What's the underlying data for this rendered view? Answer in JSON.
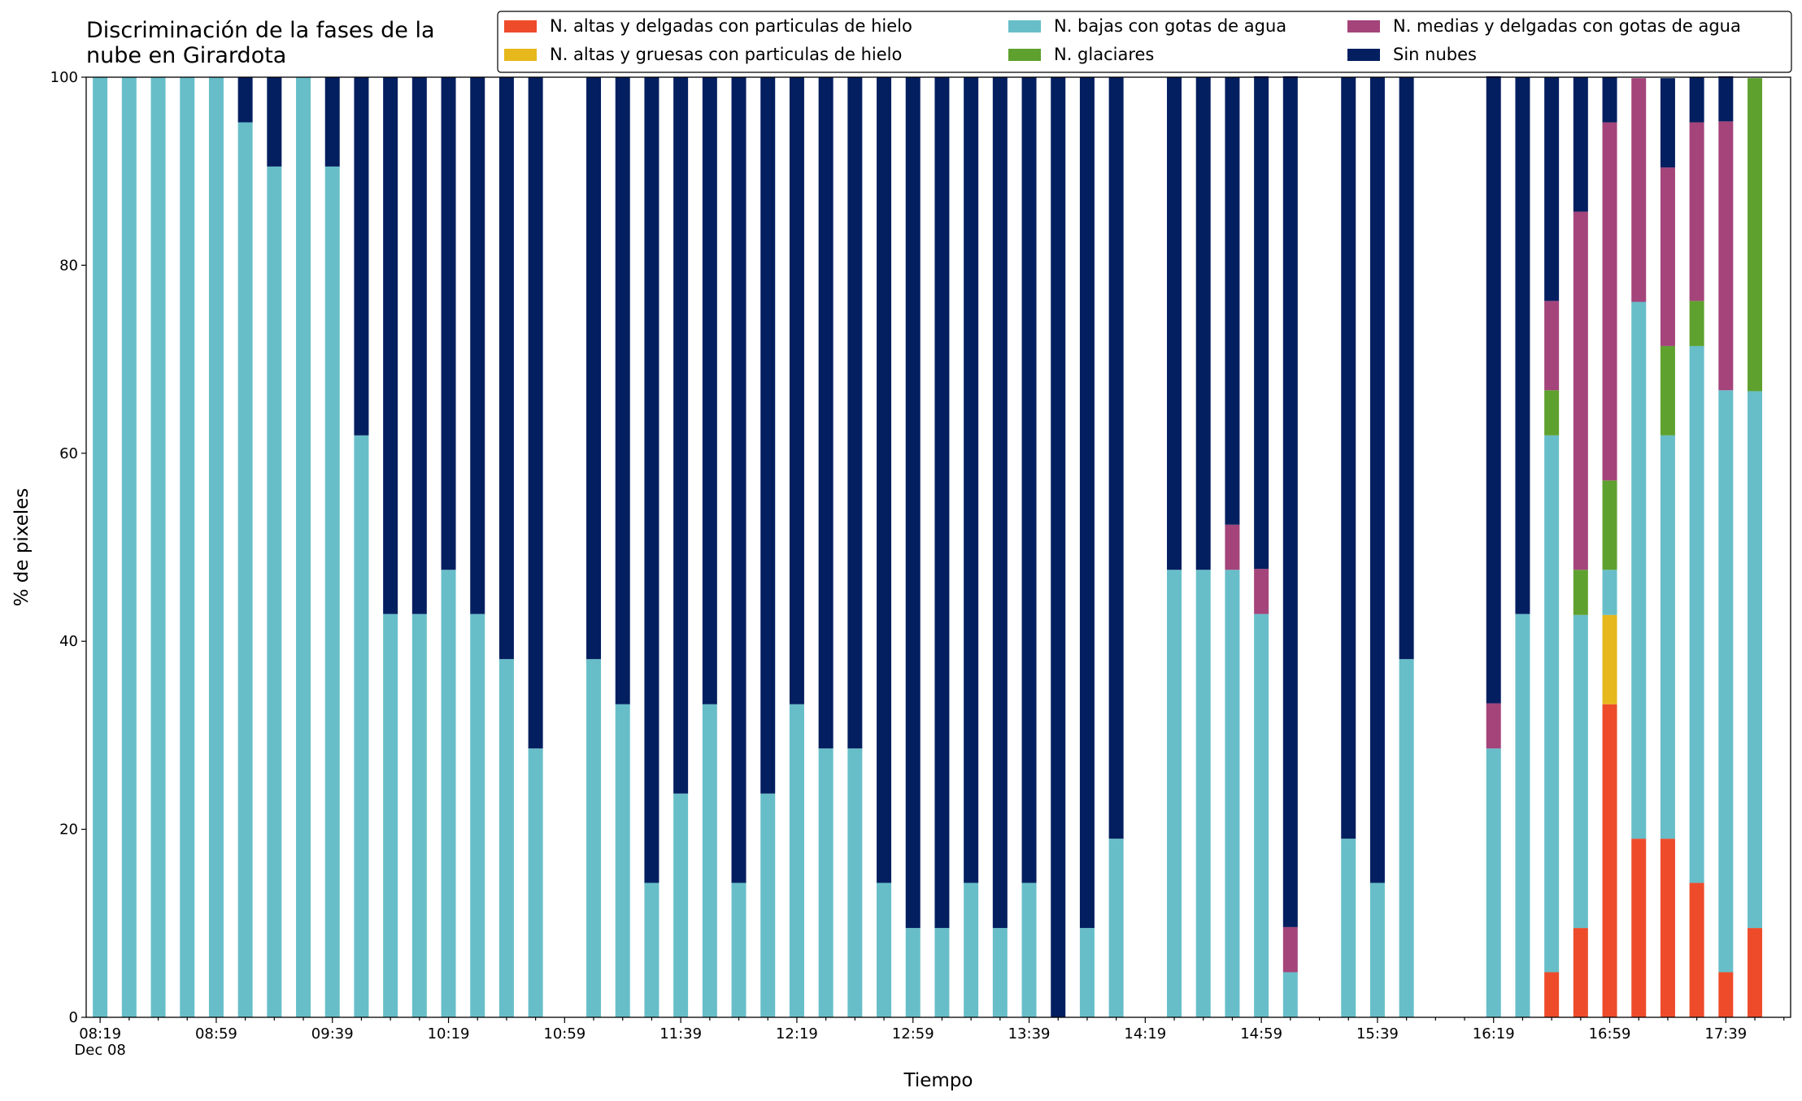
{
  "chart_data": {
    "type": "stacked_bar",
    "title": "Discriminación de la fases de la\nnube en Girardota",
    "x_label": "Tiempo",
    "y_label": "% de pixeles",
    "x_date": "Dec 08",
    "categories": [
      "08:19",
      null,
      null,
      null,
      "08:59",
      null,
      null,
      null,
      "09:39",
      null,
      null,
      null,
      "10:19",
      null,
      null,
      null,
      "10:59",
      null,
      null,
      null,
      "11:39",
      null,
      null,
      null,
      "12:19",
      null,
      null,
      null,
      "12:59",
      null,
      null,
      null,
      "13:39",
      null,
      null,
      null,
      "14:19",
      null,
      null,
      null,
      "14:59",
      null,
      null,
      null,
      "15:39",
      null,
      null,
      null,
      "16:19",
      null,
      null,
      null,
      "16:59",
      null,
      null,
      null,
      "17:39",
      null
    ],
    "series": [
      {
        "name": "N. altas y delgadas con particulas de hielo",
        "color": "#ee4b2b",
        "values": [
          0,
          0,
          0,
          0,
          0,
          0,
          0,
          0,
          0,
          0,
          0,
          0,
          0,
          0,
          0,
          0,
          0,
          0,
          0,
          0,
          0,
          0,
          0,
          0,
          0,
          0,
          0,
          0,
          0,
          0,
          0,
          0,
          0,
          0,
          0,
          0,
          0,
          0,
          0,
          0,
          0,
          0,
          0,
          0,
          0,
          0,
          0,
          0,
          0,
          0,
          4.8,
          9.5,
          33.3,
          19.0,
          19.0,
          14.3,
          4.8,
          9.5
        ]
      },
      {
        "name": "N. altas y gruesas con particulas de hielo",
        "color": "#e6b81c",
        "values": [
          0,
          0,
          0,
          0,
          0,
          0,
          0,
          0,
          0,
          0,
          0,
          0,
          0,
          0,
          0,
          0,
          0,
          0,
          0,
          0,
          0,
          0,
          0,
          0,
          0,
          0,
          0,
          0,
          0,
          0,
          0,
          0,
          0,
          0,
          0,
          0,
          0,
          0,
          0,
          0,
          0,
          0,
          0,
          0,
          0,
          0,
          0,
          0,
          0,
          0,
          0,
          0,
          9.5,
          0,
          0,
          0,
          0,
          0
        ]
      },
      {
        "name": "N. bajas con gotas de agua",
        "color": "#67bec9",
        "values": [
          100,
          100,
          100,
          100,
          100,
          95.2,
          90.5,
          100,
          90.5,
          61.9,
          42.9,
          42.9,
          47.6,
          42.9,
          38.1,
          28.6,
          0,
          38.1,
          33.3,
          14.3,
          23.8,
          33.3,
          14.3,
          23.8,
          33.3,
          28.6,
          28.6,
          14.3,
          9.5,
          9.5,
          14.3,
          9.5,
          14.3,
          0,
          9.5,
          19.0,
          0,
          47.6,
          47.6,
          47.6,
          42.9,
          4.8,
          0,
          19.0,
          14.3,
          38.1,
          0,
          0,
          28.6,
          42.9,
          57.1,
          33.3,
          4.8,
          57.1,
          42.9,
          57.1,
          61.9,
          57.1
        ]
      },
      {
        "name": "N. glaciares",
        "color": "#5ea12e",
        "values": [
          0,
          0,
          0,
          0,
          0,
          0,
          0,
          0,
          0,
          0,
          0,
          0,
          0,
          0,
          0,
          0,
          0,
          0,
          0,
          0,
          0,
          0,
          0,
          0,
          0,
          0,
          0,
          0,
          0,
          0,
          0,
          0,
          0,
          0,
          0,
          0,
          0,
          0,
          0,
          0,
          0,
          0,
          0,
          0,
          0,
          0,
          0,
          0,
          0,
          0,
          4.8,
          4.8,
          9.5,
          0,
          9.5,
          4.8,
          0,
          33.3
        ]
      },
      {
        "name": "N. medias y delgadas con gotas de agua",
        "color": "#a4447a",
        "values": [
          0,
          0,
          0,
          0,
          0,
          0,
          0,
          0,
          0,
          0,
          0,
          0,
          0,
          0,
          0,
          0,
          0,
          0,
          0,
          0,
          0,
          0,
          0,
          0,
          0,
          0,
          0,
          0,
          0,
          0,
          0,
          0,
          0,
          0,
          0,
          0,
          0,
          0,
          0,
          4.8,
          4.8,
          4.8,
          0,
          0,
          0,
          0,
          0,
          0,
          4.8,
          0,
          9.5,
          38.1,
          38.1,
          23.8,
          19.0,
          19.0,
          28.6,
          0
        ]
      },
      {
        "name": "Sin nubes",
        "color": "#041f60",
        "values": [
          0,
          0,
          0,
          0,
          0,
          4.8,
          9.5,
          0,
          9.5,
          38.1,
          57.1,
          57.1,
          52.4,
          57.1,
          61.9,
          71.4,
          0,
          61.9,
          66.7,
          85.7,
          76.2,
          66.7,
          85.7,
          76.2,
          66.7,
          71.4,
          71.4,
          85.7,
          90.5,
          90.5,
          85.7,
          90.5,
          85.7,
          100,
          90.5,
          81.0,
          0,
          52.4,
          52.4,
          47.6,
          52.4,
          90.5,
          0,
          81.0,
          85.7,
          61.9,
          0,
          0,
          66.7,
          57.1,
          23.8,
          14.3,
          4.8,
          0,
          9.5,
          4.8,
          4.8,
          0
        ]
      }
    ],
    "ylim": [
      0,
      100
    ],
    "yticks": [
      0,
      20,
      40,
      60,
      80,
      100
    ]
  }
}
